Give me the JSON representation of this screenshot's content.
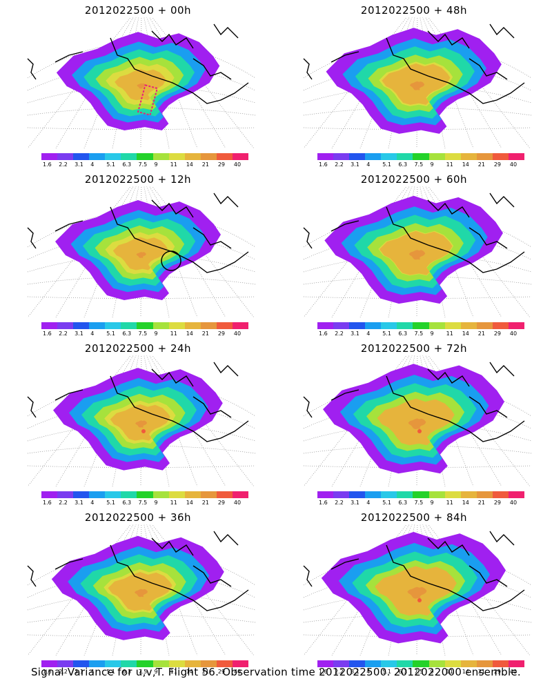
{
  "caption": "Signal Variance for u,v,T. Flight 56. Observation time 2012022500. 2012022000 ensemble.",
  "colorbar": {
    "colors": [
      "#a020f0",
      "#7a3cf0",
      "#2255ee",
      "#1a9ef0",
      "#28c8e8",
      "#20d8a8",
      "#24d22a",
      "#a6e23c",
      "#dcdc40",
      "#e6b43c",
      "#e6963c",
      "#f05a3c",
      "#f0206e"
    ],
    "labels": [
      "1.6",
      "2.2",
      "3.1",
      "4",
      "5.1",
      "6.3",
      "7.5",
      "9",
      "11",
      "14",
      "21",
      "29",
      "40"
    ]
  },
  "panels": [
    {
      "title": "2012022500 + 00h",
      "fill_level": 0.45,
      "markers": [
        "dashed-box"
      ]
    },
    {
      "title": "2012022500 + 12h",
      "fill_level": 0.5,
      "markers": [
        "circle"
      ]
    },
    {
      "title": "2012022500 + 24h",
      "fill_level": 0.58,
      "markers": [
        "red-dot"
      ]
    },
    {
      "title": "2012022500 + 36h",
      "fill_level": 0.64,
      "markers": []
    },
    {
      "title": "2012022500 + 48h",
      "fill_level": 0.7,
      "markers": []
    },
    {
      "title": "2012022500 + 60h",
      "fill_level": 0.76,
      "markers": []
    },
    {
      "title": "2012022500 + 72h",
      "fill_level": 0.82,
      "markers": [
        "red-dot"
      ]
    },
    {
      "title": "2012022500 + 84h",
      "fill_level": 0.88,
      "markers": [
        "red-dot"
      ]
    }
  ]
}
